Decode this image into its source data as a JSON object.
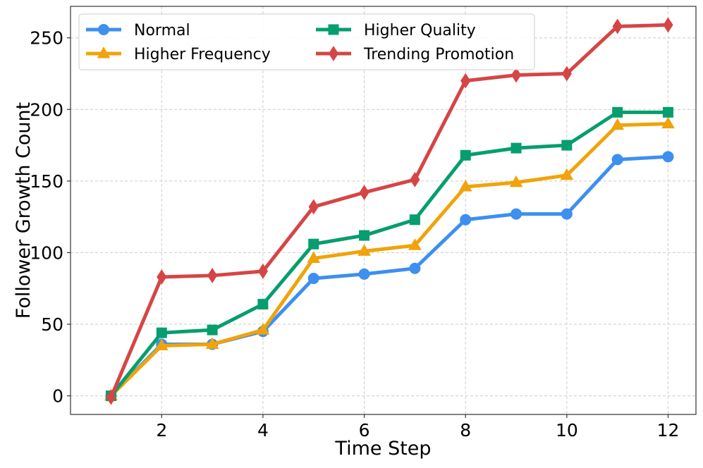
{
  "chart_data": {
    "type": "line",
    "title": "",
    "xlabel": "Time Step",
    "ylabel": "Follower Growth Count",
    "x": [
      1,
      2,
      3,
      4,
      5,
      6,
      7,
      8,
      9,
      10,
      11,
      12
    ],
    "xlim": [
      0.2,
      12.55
    ],
    "ylim": [
      -13,
      272
    ],
    "xticks": [
      2,
      4,
      6,
      8,
      10,
      12
    ],
    "yticks": [
      0,
      50,
      100,
      150,
      200,
      250
    ],
    "grid": true,
    "legend_position": "top-left",
    "series": [
      {
        "name": "Normal",
        "color": "#3d8ff0",
        "marker": "circle",
        "values": [
          0,
          36,
          36,
          45,
          82,
          85,
          89,
          123,
          127,
          127,
          165,
          167
        ]
      },
      {
        "name": "Higher Frequency",
        "color": "#f0a30a",
        "marker": "triangle",
        "values": [
          0,
          35,
          36,
          46,
          96,
          101,
          105,
          146,
          149,
          154,
          189,
          190
        ]
      },
      {
        "name": "Higher Quality",
        "color": "#069e6e",
        "marker": "square",
        "values": [
          0,
          44,
          46,
          64,
          106,
          112,
          123,
          168,
          173,
          175,
          198,
          198
        ]
      },
      {
        "name": "Trending Promotion",
        "color": "#d64545",
        "marker": "diamond",
        "values": [
          -1,
          83,
          84,
          87,
          132,
          142,
          151,
          220,
          224,
          225,
          258,
          259
        ]
      }
    ]
  }
}
